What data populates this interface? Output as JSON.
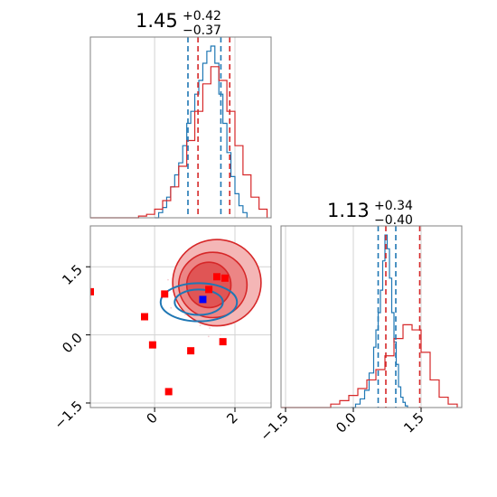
{
  "colors": {
    "red": "#d62728",
    "blue": "#1f77b4",
    "grid": "#d3d3d3",
    "marker_red": "#ff0000",
    "marker_blue": "#0000ff",
    "axes": "#808080"
  },
  "titles": {
    "param1": {
      "median": "1.45",
      "plus": "+0.42",
      "minus": "−0.37"
    },
    "param2": {
      "median": "1.13",
      "plus": "+0.34",
      "minus": "−0.40"
    }
  },
  "chart_data": [
    {
      "type": "histogram",
      "panel": "top-left",
      "xlim": [
        -1.6,
        2.9
      ],
      "grid": true,
      "series": [
        {
          "color": "#1f77b4",
          "bins_x": [
            0.0,
            0.1,
            0.2,
            0.3,
            0.4,
            0.5,
            0.6,
            0.7,
            0.8,
            0.9,
            1.0,
            1.1,
            1.2,
            1.3,
            1.4,
            1.5,
            1.6,
            1.7,
            1.8,
            1.9,
            2.0,
            2.1,
            2.2,
            2.3
          ],
          "density": [
            0.0,
            0.03,
            0.06,
            0.12,
            0.18,
            0.25,
            0.32,
            0.42,
            0.55,
            0.62,
            0.72,
            0.8,
            0.9,
            0.97,
            1.0,
            0.9,
            0.72,
            0.55,
            0.38,
            0.24,
            0.14,
            0.07,
            0.03,
            0.0
          ],
          "quantile_lines": [
            0.83,
            1.65
          ]
        },
        {
          "color": "#d62728",
          "bins_x": [
            -1.6,
            -0.4,
            -0.2,
            0.0,
            0.2,
            0.4,
            0.6,
            0.8,
            1.0,
            1.2,
            1.4,
            1.6,
            1.8,
            2.0,
            2.2,
            2.4,
            2.6,
            2.8
          ],
          "density": [
            0.0,
            0.01,
            0.02,
            0.05,
            0.1,
            0.18,
            0.3,
            0.45,
            0.62,
            0.78,
            0.88,
            0.8,
            0.62,
            0.42,
            0.25,
            0.12,
            0.05,
            0.02
          ],
          "quantile_lines": [
            1.08,
            1.87
          ]
        }
      ]
    },
    {
      "type": "histogram",
      "panel": "bottom-right",
      "xlim": [
        -1.6,
        2.4
      ],
      "xticks": [
        "−1.5",
        "0.0",
        "1.5"
      ],
      "grid": true,
      "series": [
        {
          "color": "#1f77b4",
          "bins_x": [
            -0.05,
            0.05,
            0.15,
            0.25,
            0.35,
            0.45,
            0.5,
            0.55,
            0.6,
            0.65,
            0.7,
            0.75,
            0.8,
            0.85,
            0.9,
            0.95,
            1.0,
            1.05,
            1.1,
            1.15,
            1.2
          ],
          "density": [
            0.0,
            0.02,
            0.05,
            0.1,
            0.2,
            0.35,
            0.45,
            0.55,
            0.68,
            0.85,
            1.0,
            0.92,
            0.75,
            0.55,
            0.38,
            0.25,
            0.12,
            0.06,
            0.03,
            0.01,
            0.0
          ],
          "quantile_lines": [
            0.55,
            0.94
          ]
        },
        {
          "color": "#d62728",
          "bins_x": [
            -1.6,
            -0.5,
            -0.3,
            -0.1,
            0.1,
            0.3,
            0.5,
            0.7,
            0.9,
            1.1,
            1.3,
            1.5,
            1.7,
            1.9,
            2.1,
            2.3
          ],
          "density": [
            0.0,
            0.02,
            0.04,
            0.07,
            0.11,
            0.16,
            0.22,
            0.3,
            0.4,
            0.48,
            0.45,
            0.32,
            0.16,
            0.06,
            0.02,
            0.0
          ],
          "quantile_lines": [
            0.72,
            1.47
          ]
        }
      ]
    },
    {
      "type": "scatter",
      "panel": "bottom-left",
      "xlim": [
        -1.6,
        2.9
      ],
      "ylim": [
        -1.6,
        2.4
      ],
      "xticks": [
        "0",
        "2"
      ],
      "yticks": [
        "−1.5",
        "0.0",
        "1.5"
      ],
      "grid": true,
      "contours_red": [
        {
          "center": [
            1.55,
            1.15
          ],
          "radius": [
            1.1,
            0.95
          ],
          "fill": "#f4b6b6"
        },
        {
          "center": [
            1.45,
            1.1
          ],
          "radius": [
            0.85,
            0.72
          ],
          "fill": "#ec8585"
        },
        {
          "center": [
            1.35,
            1.1
          ],
          "radius": [
            0.55,
            0.5
          ],
          "fill": "#e05555"
        }
      ],
      "contours_blue": [
        {
          "center": [
            1.1,
            0.72
          ],
          "radius": [
            0.95,
            0.42
          ]
        },
        {
          "center": [
            1.1,
            0.72
          ],
          "radius": [
            0.6,
            0.28
          ]
        }
      ],
      "red_markers": [
        [
          -1.6,
          0.95
        ],
        [
          -0.25,
          0.4
        ],
        [
          -0.05,
          -0.22
        ],
        [
          0.25,
          0.9
        ],
        [
          0.35,
          -1.25
        ],
        [
          0.9,
          -0.35
        ],
        [
          1.35,
          1.0
        ],
        [
          1.55,
          1.28
        ],
        [
          1.75,
          1.25
        ],
        [
          1.7,
          -0.15
        ]
      ],
      "blue_markers": [
        [
          1.2,
          0.78
        ]
      ]
    }
  ]
}
